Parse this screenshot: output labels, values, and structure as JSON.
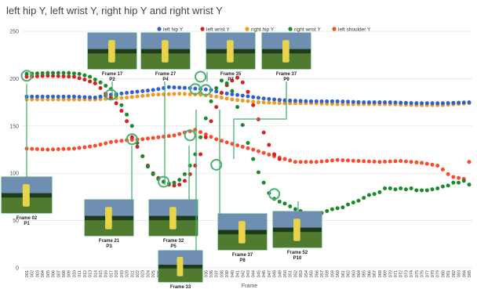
{
  "chart_data": {
    "type": "scatter",
    "title": "left hip Y, left wrist Y, right hip Y and right wrist Y",
    "xlabel": "Frame",
    "ylabel": "",
    "xlim": [
      1,
      85
    ],
    "ylim": [
      0,
      250
    ],
    "yticks": [
      0,
      50,
      100,
      150,
      200,
      250
    ],
    "grid": true,
    "legend": "top",
    "categories": [
      "000",
      "001",
      "002",
      "003",
      "004",
      "005",
      "006",
      "007",
      "008",
      "009",
      "010",
      "011",
      "012",
      "013",
      "014",
      "015",
      "016",
      "017",
      "018",
      "019",
      "020",
      "021",
      "022",
      "023",
      "024",
      "025",
      "026",
      "027",
      "028",
      "029",
      "030",
      "031",
      "032",
      "033",
      "034",
      "035",
      "036",
      "037",
      "038",
      "039",
      "040",
      "041",
      "042",
      "043",
      "044",
      "045",
      "046",
      "047",
      "048",
      "049",
      "050",
      "051",
      "052",
      "053",
      "054",
      "055",
      "056",
      "057",
      "058",
      "059",
      "060",
      "061",
      "062",
      "063",
      "064",
      "065",
      "066",
      "067",
      "068",
      "069",
      "070",
      "071",
      "072",
      "073",
      "074",
      "075",
      "076",
      "077",
      "078",
      "079",
      "080",
      "081",
      "082",
      "083",
      "084",
      "085"
    ],
    "series": [
      {
        "name": "left hip Y",
        "color": "#2f5fd0",
        "points": [
          [
            1,
            181
          ],
          [
            10,
            181
          ],
          [
            14,
            180
          ],
          [
            17,
            183
          ],
          [
            20,
            185
          ],
          [
            25,
            188
          ],
          [
            28,
            191
          ],
          [
            32,
            190
          ],
          [
            34,
            189
          ],
          [
            36,
            188
          ],
          [
            38,
            185
          ],
          [
            42,
            182
          ],
          [
            46,
            179
          ],
          [
            50,
            177
          ],
          [
            55,
            176
          ],
          [
            60,
            176
          ],
          [
            65,
            175
          ],
          [
            70,
            175
          ],
          [
            75,
            174
          ],
          [
            80,
            174
          ],
          [
            85,
            175
          ]
        ]
      },
      {
        "name": "left wrist Y",
        "color": "#d62020",
        "points": [
          [
            1,
            202
          ],
          [
            5,
            203
          ],
          [
            10,
            202
          ],
          [
            12,
            199
          ],
          [
            14,
            195
          ],
          [
            15,
            190
          ],
          [
            16,
            184
          ],
          [
            17,
            180
          ],
          [
            18,
            174
          ],
          [
            19,
            166
          ],
          [
            20,
            155
          ],
          [
            21,
            138
          ],
          [
            22,
            128
          ],
          [
            23,
            118
          ],
          [
            24,
            108
          ],
          [
            25,
            100
          ],
          [
            26,
            95
          ],
          [
            27,
            91
          ],
          [
            28,
            88
          ],
          [
            29,
            87
          ],
          [
            30,
            88
          ],
          [
            31,
            92
          ],
          [
            32,
            99
          ],
          [
            33,
            108
          ],
          [
            34,
            120
          ],
          [
            35,
            138
          ],
          [
            36,
            155
          ],
          [
            37,
            170
          ],
          [
            38,
            185
          ],
          [
            39,
            193
          ],
          [
            40,
            198
          ],
          [
            41,
            201
          ],
          [
            42,
            196
          ],
          [
            43,
            186
          ],
          [
            44,
            172
          ],
          [
            45,
            157
          ],
          [
            46,
            143
          ],
          [
            47,
            130
          ],
          [
            48,
            120
          ],
          [
            49,
            115
          ]
        ]
      },
      {
        "name": "right hip Y",
        "color": "#f09a20",
        "points": [
          [
            1,
            178
          ],
          [
            5,
            178
          ],
          [
            10,
            178
          ],
          [
            14,
            178
          ],
          [
            17,
            179
          ],
          [
            20,
            180
          ],
          [
            25,
            183
          ],
          [
            30,
            184
          ],
          [
            34,
            183
          ],
          [
            37,
            181
          ],
          [
            40,
            178
          ],
          [
            45,
            175
          ],
          [
            50,
            174
          ],
          [
            55,
            174
          ],
          [
            60,
            173
          ],
          [
            65,
            173
          ],
          [
            70,
            173
          ],
          [
            75,
            172
          ],
          [
            80,
            172
          ],
          [
            85,
            174
          ]
        ]
      },
      {
        "name": "right wrist Y",
        "color": "#1a8a2a",
        "points": [
          [
            1,
            205
          ],
          [
            5,
            206
          ],
          [
            9,
            206
          ],
          [
            11,
            205
          ],
          [
            13,
            202
          ],
          [
            15,
            196
          ],
          [
            17,
            189
          ],
          [
            18,
            182
          ],
          [
            19,
            172
          ],
          [
            20,
            162
          ],
          [
            21,
            150
          ],
          [
            22,
            132
          ],
          [
            23,
            118
          ],
          [
            24,
            107
          ],
          [
            25,
            99
          ],
          [
            26,
            94
          ],
          [
            27,
            91
          ],
          [
            28,
            89
          ],
          [
            29,
            90
          ],
          [
            30,
            93
          ],
          [
            31,
            99
          ],
          [
            32,
            108
          ],
          [
            33,
            120
          ],
          [
            34,
            138
          ],
          [
            35,
            158
          ],
          [
            36,
            176
          ],
          [
            37,
            190
          ],
          [
            38,
            198
          ],
          [
            39,
            195
          ],
          [
            40,
            187
          ],
          [
            41,
            170
          ],
          [
            42,
            151
          ],
          [
            43,
            132
          ],
          [
            44,
            115
          ],
          [
            45,
            101
          ],
          [
            46,
            90
          ],
          [
            47,
            79
          ],
          [
            48,
            73
          ],
          [
            49,
            70
          ],
          [
            50,
            68
          ],
          [
            51,
            65
          ],
          [
            52,
            62
          ],
          [
            53,
            60
          ],
          [
            54,
            58
          ],
          [
            55,
            57
          ],
          [
            56,
            57
          ],
          [
            57,
            58
          ],
          [
            58,
            60
          ],
          [
            59,
            62
          ],
          [
            60,
            63
          ],
          [
            61,
            64
          ],
          [
            62,
            67
          ],
          [
            63,
            69
          ],
          [
            64,
            71
          ],
          [
            65,
            74
          ],
          [
            66,
            77
          ],
          [
            67,
            78
          ],
          [
            68,
            80
          ],
          [
            69,
            84
          ],
          [
            70,
            84
          ],
          [
            71,
            83
          ],
          [
            72,
            84
          ],
          [
            73,
            83
          ],
          [
            74,
            84
          ],
          [
            75,
            82
          ],
          [
            76,
            82
          ],
          [
            77,
            82
          ],
          [
            78,
            83
          ],
          [
            79,
            84
          ],
          [
            80,
            86
          ],
          [
            81,
            87
          ],
          [
            82,
            90
          ],
          [
            83,
            90
          ],
          [
            84,
            92
          ],
          [
            85,
            88
          ]
        ]
      },
      {
        "name": "left shoulder Y",
        "color": "#ff4a2a",
        "points": [
          [
            1,
            126
          ],
          [
            5,
            125
          ],
          [
            10,
            126
          ],
          [
            14,
            129
          ],
          [
            17,
            133
          ],
          [
            20,
            135
          ],
          [
            23,
            136
          ],
          [
            26,
            138
          ],
          [
            29,
            140
          ],
          [
            31,
            143
          ],
          [
            33,
            146
          ],
          [
            35,
            141
          ],
          [
            37,
            136
          ],
          [
            40,
            131
          ],
          [
            44,
            125
          ],
          [
            48,
            118
          ],
          [
            52,
            112
          ],
          [
            56,
            112
          ],
          [
            60,
            114
          ],
          [
            64,
            113
          ],
          [
            68,
            112
          ],
          [
            72,
            113
          ],
          [
            76,
            111
          ],
          [
            79,
            108
          ],
          [
            80,
            104
          ],
          [
            81,
            99
          ],
          [
            82,
            96
          ],
          [
            83,
            95
          ],
          [
            84,
            94
          ],
          [
            85,
            112
          ]
        ]
      }
    ],
    "annotations": [
      {
        "frame": "Frame 02",
        "phase": "P1"
      },
      {
        "frame": "Frame 17",
        "phase": "P2"
      },
      {
        "frame": "Frame 21",
        "phase": "P3"
      },
      {
        "frame": "Frame 27",
        "phase": "P4"
      },
      {
        "frame": "Frame 32",
        "phase": "P5"
      },
      {
        "frame": "Frame 33",
        "phase": "P6"
      },
      {
        "frame": "Frame 35",
        "phase": "P7"
      },
      {
        "frame": "Frame 37",
        "phase": "P8"
      },
      {
        "frame": "Frame 37",
        "phase": "P9"
      },
      {
        "frame": "Frame 52",
        "phase": "P10"
      }
    ]
  }
}
